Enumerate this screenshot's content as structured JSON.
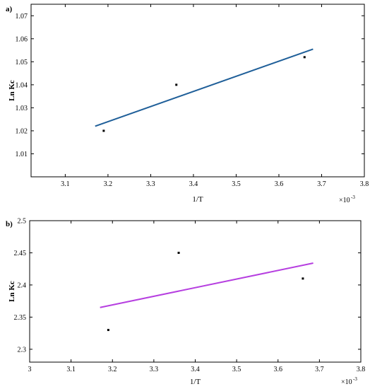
{
  "chart_data": [
    {
      "type": "scatter",
      "panel_label": "a)",
      "xlabel": "1/T",
      "ylabel": "Ln Kc",
      "x_multiplier": "×10",
      "x_multiplier_exp": "-3",
      "xlim": [
        3.02,
        3.8
      ],
      "ylim": [
        1.0,
        1.075
      ],
      "xticks": [
        "3.1",
        "3.2",
        "3.3",
        "3.4",
        "3.5",
        "3.6",
        "3.7",
        "3.8"
      ],
      "yticks": [
        "1.01",
        "1.02",
        "1.03",
        "1.04",
        "1.05",
        "1.06",
        "1.07"
      ],
      "points": [
        {
          "x": 3.19,
          "y": 1.02
        },
        {
          "x": 3.36,
          "y": 1.04
        },
        {
          "x": 3.66,
          "y": 1.052
        }
      ],
      "fit_line": {
        "x": [
          3.17,
          3.68
        ],
        "y": [
          1.022,
          1.0555
        ],
        "color": "#1f5f99"
      }
    },
    {
      "type": "scatter",
      "panel_label": "b)",
      "xlabel": "1/T",
      "ylabel": "Ln Kc",
      "x_multiplier": "×10",
      "x_multiplier_exp": "-3",
      "xlim": [
        3.0,
        3.8
      ],
      "ylim": [
        2.28,
        2.5
      ],
      "xticks": [
        "3",
        "3.1",
        "3.2",
        "3.3",
        "3.4",
        "3.5",
        "3.6",
        "3.7",
        "3.8"
      ],
      "yticks": [
        "2.3",
        "2.35",
        "2.4",
        "2.45",
        "2.5"
      ],
      "points": [
        {
          "x": 3.19,
          "y": 2.33
        },
        {
          "x": 3.36,
          "y": 2.45
        },
        {
          "x": 3.66,
          "y": 2.41
        }
      ],
      "fit_line": {
        "x": [
          3.17,
          3.685
        ],
        "y": [
          2.365,
          2.434
        ],
        "color": "#b63fe0"
      }
    }
  ]
}
